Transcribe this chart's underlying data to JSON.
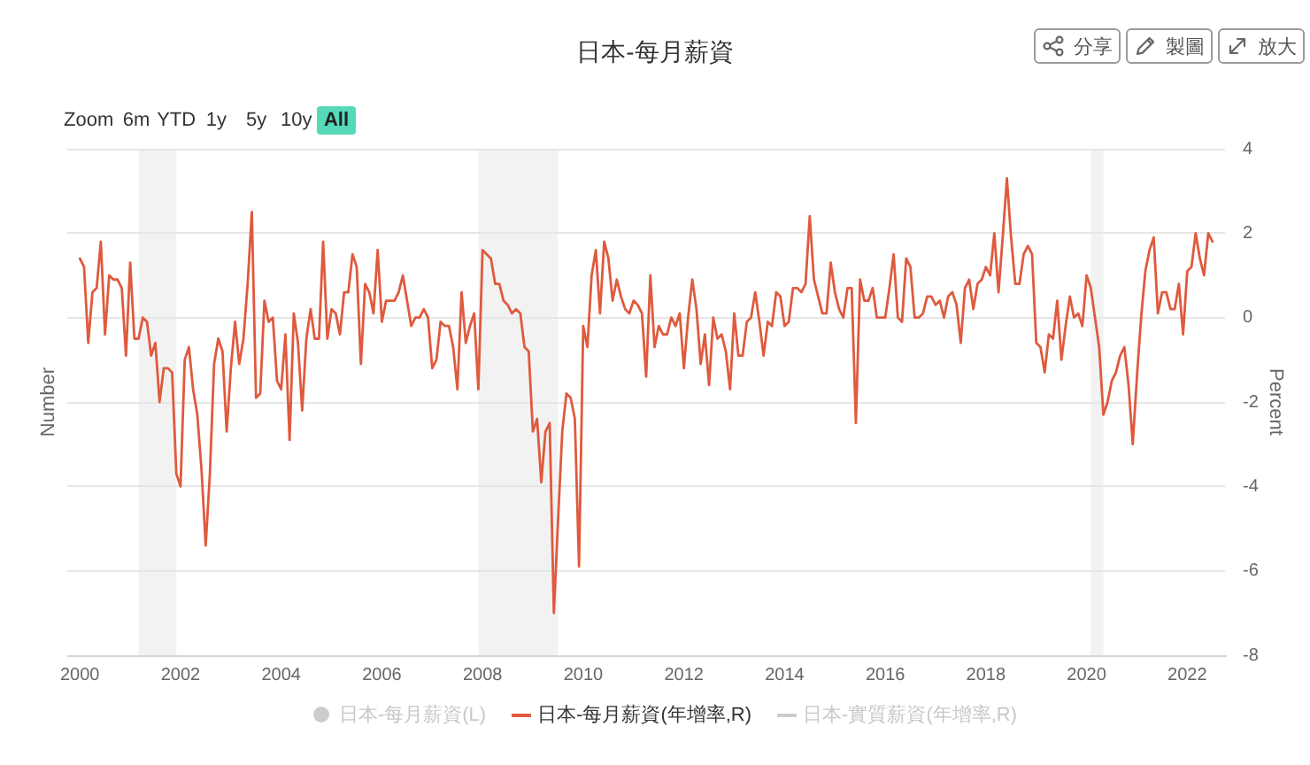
{
  "chart_data": {
    "type": "line",
    "title": "日本-每月薪資",
    "ylabel": "Number",
    "y2label": "Percent",
    "xlim": [
      "1999-10",
      "2022-10"
    ],
    "xticks": [
      "2000",
      "2002",
      "2004",
      "2006",
      "2008",
      "2010",
      "2012",
      "2014",
      "2016",
      "2018",
      "2020",
      "2022"
    ],
    "y2lim": [
      -8,
      4
    ],
    "y2ticks": [
      -8,
      -6,
      -4,
      -2,
      0,
      2,
      4
    ],
    "grid": "y",
    "legend": "bottom",
    "bands": [
      {
        "axis": "x",
        "from": "2001-03",
        "to": "2001-12",
        "color": "#f2f2f2"
      },
      {
        "axis": "x",
        "from": "2007-12",
        "to": "2009-07",
        "color": "#f2f2f2"
      },
      {
        "axis": "x",
        "from": "2020-02",
        "to": "2020-05",
        "color": "#f2f2f2"
      }
    ],
    "annotations": [
      "Zoom",
      "6m",
      "YTD",
      "1y",
      "5y",
      "10y",
      "All",
      "分享",
      "製圖",
      "放大"
    ],
    "x": [
      "2000-01",
      "2000-02",
      "2000-03",
      "2000-04",
      "2000-05",
      "2000-06",
      "2000-07",
      "2000-08",
      "2000-09",
      "2000-10",
      "2000-11",
      "2000-12",
      "2001-01",
      "2001-02",
      "2001-03",
      "2001-04",
      "2001-05",
      "2001-06",
      "2001-07",
      "2001-08",
      "2001-09",
      "2001-10",
      "2001-11",
      "2001-12",
      "2002-01",
      "2002-02",
      "2002-03",
      "2002-04",
      "2002-05",
      "2002-06",
      "2002-07",
      "2002-08",
      "2002-09",
      "2002-10",
      "2002-11",
      "2002-12",
      "2003-01",
      "2003-02",
      "2003-03",
      "2003-04",
      "2003-05",
      "2003-06",
      "2003-07",
      "2003-08",
      "2003-09",
      "2003-10",
      "2003-11",
      "2003-12",
      "2004-01",
      "2004-02",
      "2004-03",
      "2004-04",
      "2004-05",
      "2004-06",
      "2004-07",
      "2004-08",
      "2004-09",
      "2004-10",
      "2004-11",
      "2004-12",
      "2005-01",
      "2005-02",
      "2005-03",
      "2005-04",
      "2005-05",
      "2005-06",
      "2005-07",
      "2005-08",
      "2005-09",
      "2005-10",
      "2005-11",
      "2005-12",
      "2006-01",
      "2006-02",
      "2006-03",
      "2006-04",
      "2006-05",
      "2006-06",
      "2006-07",
      "2006-08",
      "2006-09",
      "2006-10",
      "2006-11",
      "2006-12",
      "2007-01",
      "2007-02",
      "2007-03",
      "2007-04",
      "2007-05",
      "2007-06",
      "2007-07",
      "2007-08",
      "2007-09",
      "2007-10",
      "2007-11",
      "2007-12",
      "2008-01",
      "2008-02",
      "2008-03",
      "2008-04",
      "2008-05",
      "2008-06",
      "2008-07",
      "2008-08",
      "2008-09",
      "2008-10",
      "2008-11",
      "2008-12",
      "2009-01",
      "2009-02",
      "2009-03",
      "2009-04",
      "2009-05",
      "2009-06",
      "2009-07",
      "2009-08",
      "2009-09",
      "2009-10",
      "2009-11",
      "2009-12",
      "2010-01",
      "2010-02",
      "2010-03",
      "2010-04",
      "2010-05",
      "2010-06",
      "2010-07",
      "2010-08",
      "2010-09",
      "2010-10",
      "2010-11",
      "2010-12",
      "2011-01",
      "2011-02",
      "2011-03",
      "2011-04",
      "2011-05",
      "2011-06",
      "2011-07",
      "2011-08",
      "2011-09",
      "2011-10",
      "2011-11",
      "2011-12",
      "2012-01",
      "2012-02",
      "2012-03",
      "2012-04",
      "2012-05",
      "2012-06",
      "2012-07",
      "2012-08",
      "2012-09",
      "2012-10",
      "2012-11",
      "2012-12",
      "2013-01",
      "2013-02",
      "2013-03",
      "2013-04",
      "2013-05",
      "2013-06",
      "2013-07",
      "2013-08",
      "2013-09",
      "2013-10",
      "2013-11",
      "2013-12",
      "2014-01",
      "2014-02",
      "2014-03",
      "2014-04",
      "2014-05",
      "2014-06",
      "2014-07",
      "2014-08",
      "2014-09",
      "2014-10",
      "2014-11",
      "2014-12",
      "2015-01",
      "2015-02",
      "2015-03",
      "2015-04",
      "2015-05",
      "2015-06",
      "2015-07",
      "2015-08",
      "2015-09",
      "2015-10",
      "2015-11",
      "2015-12",
      "2016-01",
      "2016-02",
      "2016-03",
      "2016-04",
      "2016-05",
      "2016-06",
      "2016-07",
      "2016-08",
      "2016-09",
      "2016-10",
      "2016-11",
      "2016-12",
      "2017-01",
      "2017-02",
      "2017-03",
      "2017-04",
      "2017-05",
      "2017-06",
      "2017-07",
      "2017-08",
      "2017-09",
      "2017-10",
      "2017-11",
      "2017-12",
      "2018-01",
      "2018-02",
      "2018-03",
      "2018-04",
      "2018-05",
      "2018-06",
      "2018-07",
      "2018-08",
      "2018-09",
      "2018-10",
      "2018-11",
      "2018-12",
      "2019-01",
      "2019-02",
      "2019-03",
      "2019-04",
      "2019-05",
      "2019-06",
      "2019-07",
      "2019-08",
      "2019-09",
      "2019-10",
      "2019-11",
      "2019-12",
      "2020-01",
      "2020-02",
      "2020-03",
      "2020-04",
      "2020-05",
      "2020-06",
      "2020-07",
      "2020-08",
      "2020-09",
      "2020-10",
      "2020-11",
      "2020-12",
      "2021-01",
      "2021-02",
      "2021-03",
      "2021-04",
      "2021-05",
      "2021-06",
      "2021-07",
      "2021-08",
      "2021-09",
      "2021-10",
      "2021-11",
      "2021-12",
      "2022-01",
      "2022-02",
      "2022-03",
      "2022-04",
      "2022-05",
      "2022-06",
      "2022-07"
    ],
    "series": [
      {
        "name": "日本-每月薪資(L)",
        "type": "area",
        "color": "#cccccc",
        "values": [
          null,
          null,
          null,
          null,
          null,
          null,
          null,
          null,
          null,
          null,
          null,
          null,
          null,
          null,
          null,
          null,
          null,
          null,
          null,
          null,
          null,
          null,
          null,
          null,
          null,
          null,
          null,
          null,
          null,
          null,
          null,
          null,
          null,
          null,
          null,
          null,
          null,
          null,
          null,
          null,
          null,
          null,
          null,
          null,
          null,
          null,
          null,
          null,
          null,
          null,
          null,
          null,
          null,
          null,
          null,
          null,
          null,
          null,
          null,
          null,
          null,
          null,
          null,
          null,
          null,
          null,
          null,
          null,
          null,
          null,
          null,
          null,
          null,
          null,
          null,
          null,
          null,
          null,
          null,
          null,
          null,
          null,
          null,
          null,
          null,
          null,
          null,
          null,
          null,
          null,
          null,
          null,
          null,
          null,
          null,
          null,
          null,
          null,
          null,
          null,
          null,
          null,
          null,
          null,
          null,
          null,
          null,
          null,
          null,
          null,
          null,
          null,
          null,
          null,
          null,
          null,
          null,
          null,
          null,
          null,
          null,
          null,
          null,
          null,
          null,
          null,
          null,
          null,
          null,
          null,
          null,
          null,
          null,
          null,
          null,
          null,
          null,
          null,
          null,
          null,
          null,
          null,
          null,
          null,
          null,
          null,
          null,
          null,
          null,
          null,
          null,
          null,
          null,
          null,
          null,
          null,
          null,
          null,
          null,
          null,
          null,
          null,
          null,
          null,
          null,
          null,
          null,
          null,
          null,
          null,
          null,
          null,
          null,
          null,
          null,
          null,
          null,
          null,
          null,
          null,
          null,
          null,
          null,
          null,
          null,
          null,
          null,
          null,
          null,
          null,
          null,
          null,
          null,
          null,
          null,
          null,
          null,
          null,
          null,
          null,
          null,
          null,
          null,
          null,
          null,
          null,
          null,
          null,
          null,
          null,
          null,
          null,
          null,
          null,
          null,
          null,
          null,
          null,
          null,
          null,
          null,
          null,
          null,
          null,
          null,
          null,
          null,
          null,
          null,
          null,
          null,
          null,
          null,
          null,
          null,
          null,
          null,
          null,
          null,
          null,
          null,
          null,
          null,
          null,
          null,
          null,
          null,
          null,
          null,
          null,
          null,
          null,
          null,
          null,
          null,
          null,
          null,
          null,
          null,
          null,
          null,
          null,
          null,
          null,
          null,
          null,
          null,
          null,
          null,
          null,
          null
        ]
      },
      {
        "name": "日本-每月薪資(年增率,R)",
        "color": "#df5a3e",
        "axis": "y2",
        "values": [
          1.4,
          1.2,
          -0.6,
          0.6,
          0.7,
          1.8,
          -0.4,
          1.0,
          0.9,
          0.9,
          0.7,
          -0.9,
          1.3,
          -0.5,
          -0.5,
          0.0,
          -0.1,
          -0.9,
          -0.6,
          -2.0,
          -1.2,
          -1.2,
          -1.3,
          -3.7,
          -4.0,
          -1.0,
          -0.7,
          -1.7,
          -2.3,
          -3.6,
          -5.4,
          -3.7,
          -1.1,
          -0.5,
          -0.8,
          -2.7,
          -1.2,
          -0.1,
          -1.1,
          -0.5,
          0.8,
          2.5,
          -1.9,
          -1.8,
          0.4,
          -0.1,
          0.0,
          -1.5,
          -1.7,
          -0.4,
          -2.9,
          0.1,
          -0.6,
          -2.2,
          -0.5,
          0.2,
          -0.5,
          -0.5,
          1.8,
          -0.5,
          0.2,
          0.1,
          -0.4,
          0.6,
          0.6,
          1.5,
          1.2,
          -1.1,
          0.8,
          0.6,
          0.1,
          1.6,
          -0.1,
          0.4,
          0.4,
          0.4,
          0.6,
          1.0,
          0.4,
          -0.2,
          0.0,
          0.0,
          0.2,
          0.0,
          -1.2,
          -1.0,
          -0.1,
          -0.2,
          -0.2,
          -0.7,
          -1.7,
          0.6,
          -0.6,
          -0.2,
          0.1,
          -1.7,
          1.6,
          1.5,
          1.4,
          0.8,
          0.8,
          0.4,
          0.3,
          0.1,
          0.2,
          0.1,
          -0.7,
          -0.8,
          -2.7,
          -2.4,
          -3.9,
          -2.7,
          -2.5,
          -7.0,
          -4.8,
          -2.7,
          -1.8,
          -1.9,
          -2.4,
          -5.9,
          -0.2,
          -0.7,
          1.0,
          1.6,
          0.1,
          1.8,
          1.4,
          0.4,
          0.9,
          0.5,
          0.2,
          0.1,
          0.4,
          0.3,
          0.1,
          -1.4,
          1.0,
          -0.7,
          -0.2,
          -0.4,
          -0.4,
          0.0,
          -0.2,
          0.1,
          -1.2,
          0.0,
          0.9,
          0.2,
          -1.1,
          -0.4,
          -1.6,
          0.0,
          -0.5,
          -0.4,
          -0.8,
          -1.7,
          0.1,
          -0.9,
          -0.9,
          -0.1,
          0.0,
          0.6,
          -0.1,
          -0.9,
          -0.1,
          -0.2,
          0.6,
          0.5,
          -0.2,
          -0.1,
          0.7,
          0.7,
          0.6,
          0.8,
          2.4,
          0.9,
          0.5,
          0.1,
          0.1,
          1.3,
          0.6,
          0.2,
          0.0,
          0.7,
          0.7,
          -2.5,
          0.9,
          0.4,
          0.4,
          0.7,
          0.0,
          0.0,
          0.0,
          0.7,
          1.5,
          0.0,
          -0.1,
          1.4,
          1.2,
          0.0,
          0.0,
          0.1,
          0.5,
          0.5,
          0.3,
          0.4,
          0.0,
          0.5,
          0.6,
          0.3,
          -0.6,
          0.7,
          0.9,
          0.2,
          0.8,
          0.9,
          1.2,
          1.0,
          2.0,
          0.6,
          1.9,
          3.3,
          1.9,
          0.8,
          0.8,
          1.5,
          1.7,
          1.5,
          -0.6,
          -0.7,
          -1.3,
          -0.4,
          -0.5,
          0.4,
          -1.0,
          -0.2,
          0.5,
          0.0,
          0.1,
          -0.2,
          1.0,
          0.7,
          0.0,
          -0.7,
          -2.3,
          -2.0,
          -1.5,
          -1.3,
          -0.9,
          -0.7,
          -1.6,
          -3.0,
          -1.4,
          0.0,
          1.1,
          1.6,
          1.9,
          0.1,
          0.6,
          0.6,
          0.2,
          0.2,
          0.8,
          -0.4,
          1.1,
          1.2,
          2.0,
          1.4,
          1.0,
          2.0,
          1.8
        ]
      },
      {
        "name": "日本-實質薪資(年增率,R)",
        "color": "#cccccc",
        "axis": "y2",
        "values": [
          null,
          null,
          null,
          null,
          null,
          null,
          null,
          null,
          null,
          null,
          null,
          null,
          null,
          null,
          null,
          null,
          null,
          null,
          null,
          null,
          null,
          null,
          null,
          null,
          null,
          null,
          null,
          null,
          null,
          null,
          null,
          null,
          null,
          null,
          null,
          null,
          null,
          null,
          null,
          null,
          null,
          null,
          null,
          null,
          null,
          null,
          null,
          null,
          null,
          null,
          null,
          null,
          null,
          null,
          null,
          null,
          null,
          null,
          null,
          null,
          null,
          null,
          null,
          null,
          null,
          null,
          null,
          null,
          null,
          null,
          null,
          null,
          null,
          null,
          null,
          null,
          null,
          null,
          null,
          null,
          null,
          null,
          null,
          null,
          null,
          null,
          null,
          null,
          null,
          null,
          null,
          null,
          null,
          null,
          null,
          null,
          null,
          null,
          null,
          null,
          null,
          null,
          null,
          null,
          null,
          null,
          null,
          null,
          null,
          null,
          null,
          null,
          null,
          null,
          null,
          null,
          null,
          null,
          null,
          null,
          null,
          null,
          null,
          null,
          null,
          null,
          null,
          null,
          null,
          null,
          null,
          null,
          null,
          null,
          null,
          null,
          null,
          null,
          null,
          null,
          null,
          null,
          null,
          null,
          null,
          null,
          null,
          null,
          null,
          null,
          null,
          null,
          null,
          null,
          null,
          null,
          null,
          null,
          null,
          null,
          null,
          null,
          null,
          null,
          null,
          null,
          null,
          null,
          null,
          null,
          null,
          null,
          null,
          null,
          null,
          null,
          null,
          null,
          null,
          null,
          null,
          null,
          null,
          null,
          null,
          null,
          null,
          null,
          null,
          null,
          null,
          null,
          null,
          null,
          null,
          null,
          null,
          null,
          null,
          null,
          null,
          null,
          null,
          null,
          null,
          null,
          null,
          null,
          null,
          null,
          null,
          null,
          null,
          null,
          null,
          null,
          null,
          null,
          null,
          null,
          null,
          null,
          null,
          null,
          null,
          null,
          null,
          null,
          null,
          null,
          null,
          null,
          null,
          null,
          null,
          null,
          null,
          null,
          null,
          null,
          null,
          null,
          null,
          null,
          null,
          null,
          null,
          null,
          null,
          null,
          null,
          null,
          null,
          null,
          null,
          null,
          null,
          null,
          null,
          null,
          null,
          null,
          null,
          null,
          null,
          null,
          null,
          null,
          null,
          null,
          null
        ]
      }
    ]
  }
}
